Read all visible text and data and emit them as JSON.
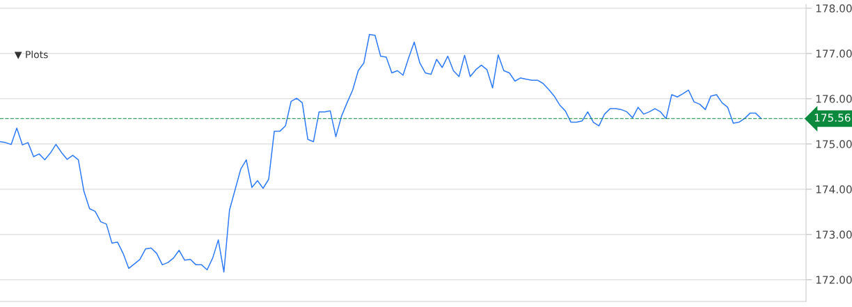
{
  "chart_data": {
    "type": "line",
    "categories": [
      null,
      null,
      null,
      null,
      null,
      null,
      null,
      null,
      null,
      null,
      null,
      null,
      null,
      null,
      null,
      null,
      null,
      null,
      null,
      null,
      null,
      null,
      null,
      null,
      null,
      null,
      null,
      null,
      null,
      null,
      null,
      null,
      null,
      null,
      null,
      null,
      null,
      null,
      null,
      null,
      null,
      null,
      null,
      null,
      null,
      null,
      null,
      null,
      null,
      null,
      null,
      null,
      null,
      null,
      null,
      null,
      null,
      null,
      null,
      null,
      null,
      null,
      null,
      null,
      null,
      null,
      null,
      null,
      null,
      null,
      null,
      null,
      null,
      null,
      null,
      null,
      null,
      null,
      null,
      null,
      null,
      null,
      null,
      null,
      null,
      null,
      null,
      null,
      null,
      null,
      null,
      null,
      null,
      null,
      null,
      null,
      null,
      null,
      null,
      null,
      null,
      null,
      null,
      null,
      null,
      null,
      null,
      null,
      null,
      null,
      null,
      null,
      null,
      null,
      null,
      null,
      null,
      null,
      null,
      null,
      null,
      null,
      null,
      null,
      null,
      null,
      null,
      null,
      null,
      null,
      null,
      null,
      null,
      null,
      null,
      null,
      null,
      null,
      null,
      null,
      null,
      null,
      null,
      null,
      null
    ],
    "series": [
      {
        "color": "#2f7bf6",
        "values": [
          175.05,
          175.03,
          174.99,
          175.35,
          174.98,
          175.03,
          174.72,
          174.78,
          174.65,
          174.8,
          174.99,
          174.81,
          174.66,
          174.75,
          174.65,
          173.95,
          173.57,
          173.51,
          173.28,
          173.23,
          172.81,
          172.83,
          172.58,
          172.25,
          172.35,
          172.45,
          172.68,
          172.7,
          172.58,
          172.33,
          172.38,
          172.48,
          172.65,
          172.43,
          172.45,
          172.33,
          172.33,
          172.22,
          172.48,
          172.88,
          172.17,
          173.54,
          173.99,
          174.44,
          174.65,
          174.04,
          174.19,
          174.02,
          174.22,
          175.28,
          175.28,
          175.4,
          175.94,
          176.01,
          175.91,
          175.1,
          175.05,
          175.71,
          175.71,
          175.73,
          175.16,
          175.61,
          175.91,
          176.19,
          176.62,
          176.79,
          177.42,
          177.4,
          176.94,
          176.92,
          176.57,
          176.62,
          176.52,
          176.9,
          177.25,
          176.79,
          176.57,
          176.54,
          176.87,
          176.69,
          176.94,
          176.62,
          176.49,
          176.96,
          176.49,
          176.64,
          176.74,
          176.64,
          176.24,
          176.97,
          176.62,
          176.57,
          176.39,
          176.46,
          176.43,
          176.41,
          176.41,
          176.34,
          176.21,
          176.06,
          175.86,
          175.73,
          175.48,
          175.48,
          175.51,
          175.71,
          175.48,
          175.4,
          175.66,
          175.78,
          175.78,
          175.76,
          175.71,
          175.58,
          175.81,
          175.66,
          175.71,
          175.78,
          175.71,
          175.56,
          176.09,
          176.04,
          176.11,
          176.19,
          175.93,
          175.88,
          175.76,
          176.06,
          176.09,
          175.91,
          175.81,
          175.46,
          175.48,
          175.56,
          175.68,
          175.68,
          175.56,
          null,
          null,
          null,
          null,
          null,
          null,
          null,
          null
        ]
      }
    ],
    "ylim": [
      171.52,
      178.08
    ],
    "yticks": [
      {
        "value": 172,
        "label": "172.00"
      },
      {
        "value": 173,
        "label": "173.00"
      },
      {
        "value": 174,
        "label": "174.00"
      },
      {
        "value": 175,
        "label": "175.00"
      },
      {
        "value": 176,
        "label": "176.00"
      },
      {
        "value": 177,
        "label": "177.00"
      },
      {
        "value": 178,
        "label": "178.00"
      }
    ],
    "grid": "y",
    "line_style": "solid",
    "ref_lines": [
      {
        "axis": "y",
        "value": 175.56,
        "label": "175.56",
        "color": "#0b8a3e",
        "line_style": "dashed"
      }
    ],
    "annotations": [
      "▼ Plots"
    ]
  }
}
